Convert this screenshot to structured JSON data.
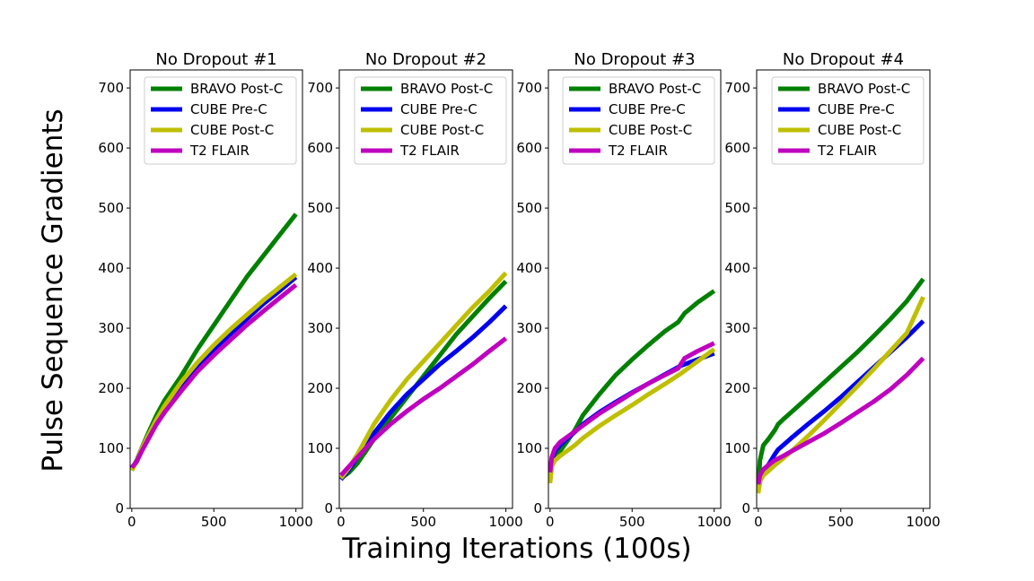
{
  "figure": {
    "xlabel": "Training Iterations (100s)",
    "ylabel": "Pulse Sequence Gradients"
  },
  "colors": {
    "BRAVO Post-C": "#008000",
    "CUBE Pre-C": "#0000ee",
    "CUBE Post-C": "#bfbf00",
    "T2 FLAIR": "#bf00bf"
  },
  "chart_data": [
    {
      "type": "line",
      "title": "No Dropout #1",
      "xlim": [
        -10,
        1040
      ],
      "ylim": [
        0,
        730
      ],
      "xticks": [
        0,
        500,
        1000
      ],
      "yticks": [
        0,
        100,
        200,
        300,
        400,
        500,
        600,
        700
      ],
      "legend": "top-right",
      "series": [
        {
          "name": "BRAVO Post-C",
          "x": [
            0,
            30,
            60,
            100,
            150,
            200,
            300,
            400,
            500,
            600,
            700,
            800,
            900,
            1000
          ],
          "y": [
            65,
            80,
            100,
            125,
            155,
            180,
            220,
            265,
            305,
            345,
            385,
            420,
            455,
            490
          ]
        },
        {
          "name": "CUBE Pre-C",
          "x": [
            0,
            30,
            60,
            100,
            150,
            200,
            300,
            400,
            500,
            600,
            700,
            800,
            900,
            1000
          ],
          "y": [
            65,
            78,
            97,
            118,
            145,
            168,
            205,
            238,
            265,
            290,
            315,
            340,
            362,
            385
          ]
        },
        {
          "name": "CUBE Post-C",
          "x": [
            0,
            30,
            60,
            100,
            150,
            200,
            300,
            400,
            500,
            600,
            700,
            800,
            900,
            1000
          ],
          "y": [
            63,
            78,
            99,
            121,
            148,
            171,
            210,
            243,
            272,
            298,
            322,
            346,
            368,
            390
          ]
        },
        {
          "name": "T2 FLAIR",
          "x": [
            0,
            30,
            60,
            100,
            150,
            200,
            300,
            400,
            500,
            600,
            700,
            800,
            900,
            1000
          ],
          "y": [
            68,
            78,
            95,
            115,
            140,
            160,
            195,
            228,
            255,
            280,
            305,
            328,
            350,
            372
          ]
        }
      ]
    },
    {
      "type": "line",
      "title": "No Dropout #2",
      "xlim": [
        -10,
        1040
      ],
      "ylim": [
        0,
        730
      ],
      "xticks": [
        0,
        500,
        1000
      ],
      "yticks": [
        0,
        100,
        200,
        300,
        400,
        500,
        600,
        700
      ],
      "legend": "top-right",
      "series": [
        {
          "name": "BRAVO Post-C",
          "x": [
            0,
            50,
            100,
            150,
            200,
            300,
            400,
            500,
            600,
            700,
            800,
            900,
            1000
          ],
          "y": [
            50,
            60,
            75,
            95,
            115,
            150,
            185,
            220,
            255,
            290,
            320,
            350,
            378
          ]
        },
        {
          "name": "CUBE Pre-C",
          "x": [
            0,
            50,
            100,
            150,
            200,
            300,
            400,
            500,
            600,
            700,
            800,
            900,
            1000
          ],
          "y": [
            48,
            65,
            85,
            105,
            125,
            160,
            190,
            215,
            240,
            262,
            285,
            310,
            337
          ]
        },
        {
          "name": "CUBE Post-C",
          "x": [
            0,
            50,
            100,
            150,
            200,
            300,
            400,
            500,
            600,
            700,
            800,
            900,
            1000
          ],
          "y": [
            50,
            68,
            90,
            115,
            140,
            180,
            215,
            245,
            275,
            305,
            335,
            362,
            392
          ]
        },
        {
          "name": "T2 FLAIR",
          "x": [
            0,
            50,
            100,
            150,
            200,
            300,
            400,
            500,
            600,
            700,
            800,
            900,
            1000
          ],
          "y": [
            55,
            70,
            85,
            100,
            115,
            140,
            162,
            182,
            200,
            220,
            240,
            262,
            283
          ]
        }
      ]
    },
    {
      "type": "line",
      "title": "No Dropout #3",
      "xlim": [
        -10,
        1040
      ],
      "ylim": [
        0,
        730
      ],
      "xticks": [
        0,
        500,
        1000
      ],
      "yticks": [
        0,
        100,
        200,
        300,
        400,
        500,
        600,
        700
      ],
      "legend": "top-right",
      "series": [
        {
          "name": "BRAVO Post-C",
          "x": [
            0,
            10,
            30,
            60,
            100,
            150,
            200,
            300,
            400,
            500,
            600,
            700,
            780,
            820,
            900,
            1000
          ],
          "y": [
            45,
            70,
            85,
            95,
            110,
            130,
            155,
            190,
            222,
            248,
            272,
            295,
            310,
            325,
            343,
            362
          ]
        },
        {
          "name": "CUBE Pre-C",
          "x": [
            0,
            10,
            30,
            60,
            100,
            150,
            200,
            300,
            400,
            500,
            600,
            700,
            800,
            900,
            1000
          ],
          "y": [
            55,
            80,
            95,
            105,
            115,
            127,
            140,
            160,
            177,
            193,
            208,
            223,
            238,
            248,
            258
          ]
        },
        {
          "name": "CUBE Post-C",
          "x": [
            0,
            10,
            30,
            60,
            100,
            150,
            200,
            300,
            400,
            500,
            600,
            700,
            800,
            900,
            1000
          ],
          "y": [
            42,
            70,
            80,
            87,
            95,
            105,
            117,
            137,
            155,
            172,
            190,
            207,
            225,
            245,
            265
          ]
        },
        {
          "name": "T2 FLAIR",
          "x": [
            0,
            10,
            30,
            60,
            100,
            150,
            200,
            300,
            400,
            500,
            600,
            700,
            780,
            820,
            900,
            1000
          ],
          "y": [
            60,
            85,
            100,
            110,
            118,
            128,
            138,
            158,
            175,
            192,
            208,
            222,
            233,
            250,
            262,
            275
          ]
        }
      ]
    },
    {
      "type": "line",
      "title": "No Dropout #4",
      "xlim": [
        -10,
        1040
      ],
      "ylim": [
        0,
        730
      ],
      "xticks": [
        0,
        500,
        1000
      ],
      "yticks": [
        0,
        100,
        200,
        300,
        400,
        500,
        600,
        700
      ],
      "legend": "top-right",
      "series": [
        {
          "name": "BRAVO Post-C",
          "x": [
            0,
            10,
            30,
            60,
            100,
            120,
            150,
            200,
            300,
            400,
            500,
            600,
            700,
            800,
            900,
            1000
          ],
          "y": [
            35,
            80,
            105,
            115,
            130,
            140,
            148,
            160,
            185,
            210,
            235,
            260,
            287,
            315,
            345,
            382
          ]
        },
        {
          "name": "CUBE Pre-C",
          "x": [
            0,
            10,
            30,
            60,
            100,
            120,
            150,
            200,
            300,
            400,
            500,
            600,
            700,
            800,
            900,
            1000
          ],
          "y": [
            30,
            45,
            60,
            72,
            90,
            98,
            105,
            117,
            140,
            162,
            185,
            210,
            235,
            260,
            285,
            312
          ]
        },
        {
          "name": "CUBE Post-C",
          "x": [
            0,
            10,
            30,
            60,
            100,
            150,
            200,
            300,
            400,
            500,
            600,
            700,
            800,
            900,
            1000
          ],
          "y": [
            25,
            45,
            55,
            62,
            72,
            83,
            95,
            120,
            147,
            175,
            203,
            232,
            262,
            292,
            352
          ]
        },
        {
          "name": "T2 FLAIR",
          "x": [
            0,
            10,
            30,
            60,
            100,
            150,
            200,
            300,
            400,
            500,
            600,
            700,
            800,
            900,
            1000
          ],
          "y": [
            40,
            55,
            65,
            72,
            80,
            87,
            95,
            110,
            125,
            142,
            160,
            178,
            198,
            222,
            250
          ]
        }
      ]
    }
  ]
}
